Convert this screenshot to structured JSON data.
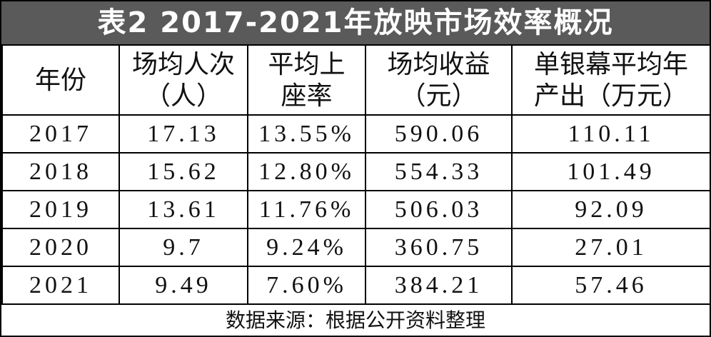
{
  "title": "表2 2017-2021年放映市场效率概况",
  "table": {
    "headers": [
      [
        "年份"
      ],
      [
        "场均人次",
        "（人）"
      ],
      [
        "平均上",
        "座率"
      ],
      [
        "场均收益",
        "（元）"
      ],
      [
        "单银幕平均年",
        "产出（万元）"
      ]
    ],
    "rows": [
      [
        "2017",
        "17.13",
        "13.55%",
        "590.06",
        "110.11"
      ],
      [
        "2018",
        "15.62",
        "12.80%",
        "554.33",
        "101.49"
      ],
      [
        "2019",
        "13.61",
        "11.76%",
        "506.03",
        "92.09"
      ],
      [
        "2020",
        "9.7",
        "9.24%",
        "360.75",
        "27.01"
      ],
      [
        "2021",
        "9.49",
        "7.60%",
        "384.21",
        "57.46"
      ]
    ]
  },
  "footer": "数据来源：根据公开资料整理"
}
